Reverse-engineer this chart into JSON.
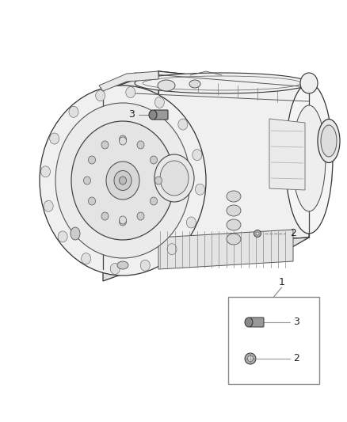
{
  "bg_color": "#ffffff",
  "fig_width": 4.38,
  "fig_height": 5.33,
  "dpi": 100,
  "edge_color": "#333333",
  "light_gray": "#e8e8e8",
  "mid_gray": "#b0b0b0",
  "dark_gray": "#555555"
}
